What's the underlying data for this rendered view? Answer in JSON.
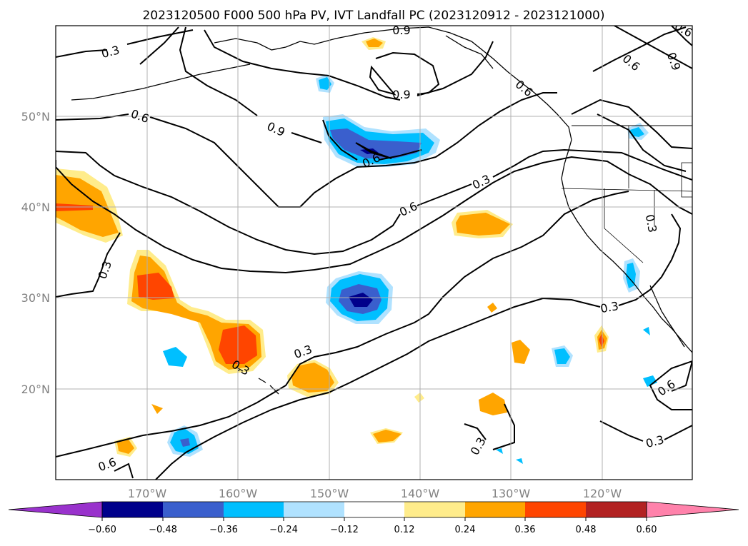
{
  "title": "2023120500 F000 500 hPa PV, IVT Landfall PC (2023120912 - 2023121000)",
  "map": {
    "lon_ticks": [
      "170°W",
      "160°W",
      "150°W",
      "140°W",
      "130°W",
      "120°W"
    ],
    "lat_ticks": [
      "50°N",
      "40°N",
      "30°N",
      "20°N"
    ],
    "grid": true,
    "contour_color": "#000000",
    "contour_labels": [
      "0.3",
      "0.6",
      "0.9",
      "0.9",
      "0.6",
      "0.9",
      "0.6",
      "0.3",
      "0.6",
      "0.3",
      "0.3",
      "0.6",
      "0.3",
      "0.3",
      "0.6",
      "0.9",
      "0.3",
      "0.3",
      "0.6",
      "0.3",
      "0.6"
    ]
  },
  "colorbar": {
    "ticks": [
      "−0.60",
      "−0.48",
      "−0.36",
      "−0.24",
      "−0.12",
      "0.12",
      "0.24",
      "0.36",
      "0.48",
      "0.60"
    ],
    "colors": [
      "#9932cc",
      "#00008b",
      "#3a5fcd",
      "#00bfff",
      "#b0e2ff",
      "#ffffff",
      "#ffec8b",
      "#ffa500",
      "#ff4500",
      "#b22222",
      "#ff82ab"
    ]
  }
}
